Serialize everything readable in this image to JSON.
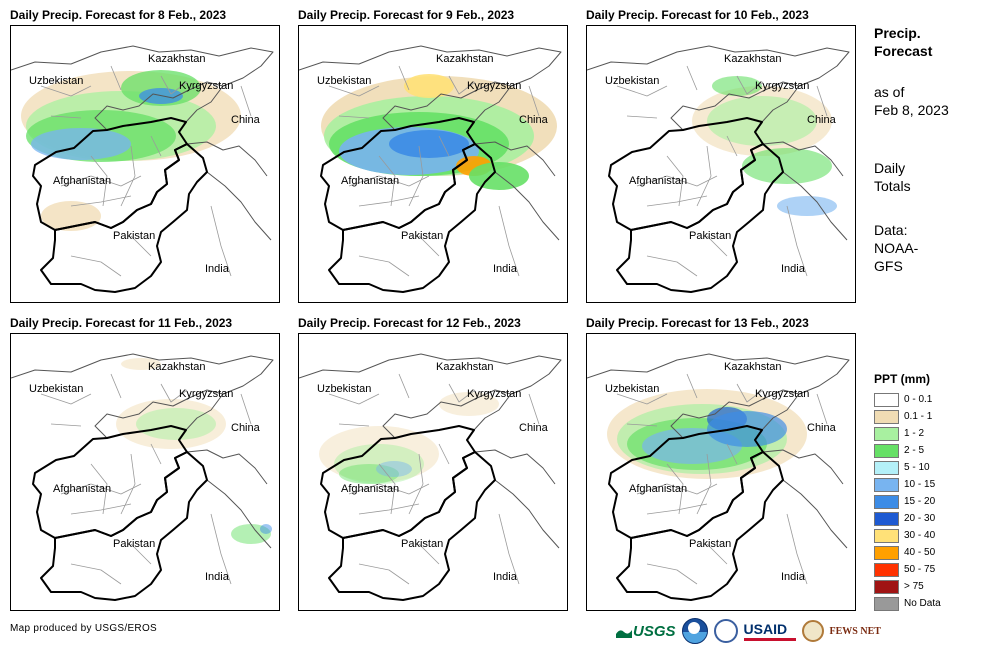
{
  "panels": [
    {
      "title": "Daily Precip. Forecast for 8 Feb., 2023",
      "intensity": 0.75,
      "precip": "day8"
    },
    {
      "title": "Daily Precip. Forecast for 9 Feb., 2023",
      "intensity": 1.0,
      "precip": "day9"
    },
    {
      "title": "Daily Precip. Forecast for 10 Feb., 2023",
      "intensity": 0.45,
      "precip": "day10"
    },
    {
      "title": "Daily Precip. Forecast for 11 Feb., 2023",
      "intensity": 0.25,
      "precip": "day11"
    },
    {
      "title": "Daily Precip. Forecast for 12 Feb., 2023",
      "intensity": 0.2,
      "precip": "day12"
    },
    {
      "title": "Daily Precip. Forecast for 13 Feb., 2023",
      "intensity": 0.6,
      "precip": "day13"
    }
  ],
  "map_labels": {
    "kazakhstan": "Kazakhstan",
    "uzbekistan": "Uzbekistan",
    "kyrgyzstan": "Kyrgyzstan",
    "china": "China",
    "afghanistan": "Afghanistan",
    "pakistan": "Pakistan",
    "india": "India"
  },
  "side": {
    "title_line1": "Precip.",
    "title_line2": "Forecast",
    "asof_line1": "as of",
    "asof_line2": "Feb 8, 2023",
    "daily_line1": "Daily",
    "daily_line2": "Totals",
    "data_line1": "Data:",
    "data_line2": "NOAA-",
    "data_line3": "GFS"
  },
  "legend": {
    "title": "PPT (mm)",
    "items": [
      {
        "label": "0 - 0.1",
        "color": "#ffffff"
      },
      {
        "label": "0.1 - 1",
        "color": "#f0dcb4"
      },
      {
        "label": "1 - 2",
        "color": "#a8f0a0"
      },
      {
        "label": "2 - 5",
        "color": "#66e066"
      },
      {
        "label": "5 - 10",
        "color": "#b4f0f8"
      },
      {
        "label": "10 - 15",
        "color": "#78b4f0"
      },
      {
        "label": "15 - 20",
        "color": "#3c8ce6"
      },
      {
        "label": "20 - 30",
        "color": "#1e5ad2"
      },
      {
        "label": "30 - 40",
        "color": "#ffe178"
      },
      {
        "label": "40 - 50",
        "color": "#ffa000"
      },
      {
        "label": "50 - 75",
        "color": "#ff3200"
      },
      {
        "label": "> 75",
        "color": "#a01414"
      },
      {
        "label": "No Data",
        "color": "#999999"
      }
    ]
  },
  "footer": "Map produced by USGS/EROS",
  "logos": {
    "usgs": "USGS",
    "usaid": "USAID",
    "fewsnet": "FEWS NET"
  }
}
